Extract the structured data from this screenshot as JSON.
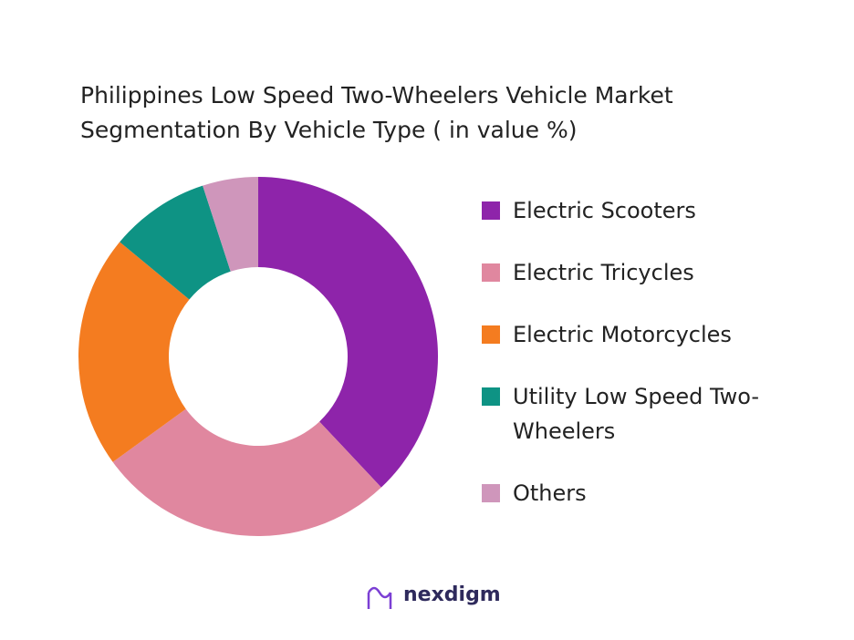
{
  "chart_data": {
    "type": "donut",
    "title": "Philippines Low Speed Two-Wheelers Vehicle Market Segmentation By Vehicle Type ( in value %)",
    "categories": [
      "Electric Scooters",
      "Electric Tricycles",
      "Electric Motorcycles",
      "Utility Low Speed Two-Wheelers",
      "Others"
    ],
    "values": [
      38,
      27,
      21,
      9,
      5
    ],
    "colors": [
      "#8e24aa",
      "#e0879f",
      "#f47c20",
      "#0e9384",
      "#cf96bb"
    ],
    "legend": "right"
  },
  "brand": "nexdigm"
}
